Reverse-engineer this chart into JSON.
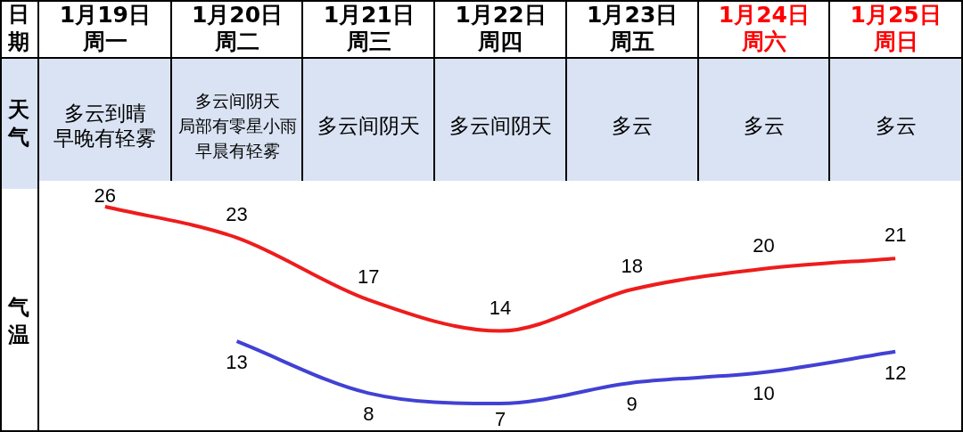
{
  "chart_data": {
    "type": "line",
    "xlabel": "日期",
    "ylabel": "气温",
    "categories": [
      "1月19日周一",
      "1月20日周二",
      "1月21日周三",
      "1月22日周四",
      "1月23日周五",
      "1月24日周六",
      "1月25日周日"
    ],
    "series": [
      {
        "color": "#ee1c1c",
        "values": [
          26,
          23,
          17,
          14,
          18,
          20,
          21
        ]
      },
      {
        "color": "#4141d4",
        "values": [
          null,
          13,
          8,
          7,
          9,
          10,
          12
        ]
      }
    ],
    "annotations": [
      "天气",
      "多云到晴早晚有轻雾",
      "多云间阴天局部有零星小雨早晨有轻雾",
      "多云间阴天",
      "多云间阴天",
      "多云",
      "多云",
      "多云"
    ],
    "data_labels": true,
    "marker": "none",
    "line_style": "solid",
    "tick_labels": "x"
  }
}
